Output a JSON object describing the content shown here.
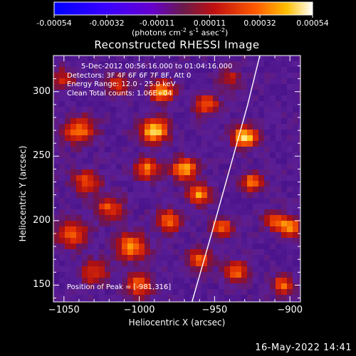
{
  "chart_data": {
    "type": "heatmap",
    "title": "Reconstructed RHESSI Image",
    "xlabel": "Heliocentric X (arcsec)",
    "ylabel": "Heliocentric Y (arcsec)",
    "xlim": [
      -1057,
      -893
    ],
    "ylim": [
      137,
      328
    ],
    "x_ticks": [
      -1050,
      -1000,
      -950,
      -900
    ],
    "y_ticks": [
      150,
      200,
      250,
      300
    ],
    "colorbar": {
      "ticks": [
        "-0.00054",
        "-0.00032",
        "-0.00011",
        "0.00011",
        "0.00032",
        "0.00054"
      ],
      "range": [
        -0.00054,
        0.00054
      ],
      "units_main": "(photons cm",
      "units_exp1": "-2",
      "units_mid": " s",
      "units_exp2": "-1",
      "units_tail": " asec",
      "units_exp3": "-2",
      "units_close": ")"
    },
    "info_lines": [
      "5-Dec-2012 00:56:16.000 to 01:04:16.000",
      "Detectors: 3F 4F 6F 6F 7F 8F, Att 0",
      "Energy Range: 12.0 - 25.0 keV",
      "Clean     Total counts: 1.06E+04"
    ],
    "peak_label": "Position of Peak = [-981,316]",
    "timestamp": "16-May-2022 14:41",
    "limb_curve": [
      [
        -965,
        137
      ],
      [
        -952,
        190
      ],
      [
        -940,
        240
      ],
      [
        -928,
        290
      ],
      [
        -920,
        328
      ]
    ],
    "blobs": [
      {
        "x": -1040,
        "y": 270,
        "v": 0.6,
        "r": 10
      },
      {
        "x": -1035,
        "y": 230,
        "v": 0.5,
        "r": 9
      },
      {
        "x": -1045,
        "y": 190,
        "v": 0.55,
        "r": 10
      },
      {
        "x": -1030,
        "y": 160,
        "v": 0.45,
        "r": 9
      },
      {
        "x": -1015,
        "y": 305,
        "v": 0.4,
        "r": 8
      },
      {
        "x": -1020,
        "y": 210,
        "v": 0.5,
        "r": 9
      },
      {
        "x": -1005,
        "y": 180,
        "v": 0.65,
        "r": 10
      },
      {
        "x": -1000,
        "y": 150,
        "v": 0.55,
        "r": 9
      },
      {
        "x": -990,
        "y": 270,
        "v": 0.85,
        "r": 9
      },
      {
        "x": -985,
        "y": 300,
        "v": 0.75,
        "r": 8
      },
      {
        "x": -995,
        "y": 240,
        "v": 0.6,
        "r": 8
      },
      {
        "x": -980,
        "y": 200,
        "v": 0.6,
        "r": 8
      },
      {
        "x": -970,
        "y": 240,
        "v": 0.75,
        "r": 8
      },
      {
        "x": -960,
        "y": 220,
        "v": 0.7,
        "r": 7
      },
      {
        "x": -955,
        "y": 290,
        "v": 0.5,
        "r": 8
      },
      {
        "x": -960,
        "y": 170,
        "v": 0.5,
        "r": 8
      },
      {
        "x": -945,
        "y": 195,
        "v": 0.55,
        "r": 7
      },
      {
        "x": -930,
        "y": 265,
        "v": 0.85,
        "r": 8
      },
      {
        "x": -925,
        "y": 230,
        "v": 0.6,
        "r": 7
      },
      {
        "x": -935,
        "y": 160,
        "v": 0.55,
        "r": 8
      },
      {
        "x": -910,
        "y": 200,
        "v": 0.5,
        "r": 7
      },
      {
        "x": -900,
        "y": 195,
        "v": 0.7,
        "r": 7
      },
      {
        "x": -905,
        "y": 150,
        "v": 0.55,
        "r": 7
      },
      {
        "x": -1050,
        "y": 310,
        "v": 0.35,
        "r": 8
      },
      {
        "x": -940,
        "y": 310,
        "v": 0.35,
        "r": 7
      }
    ]
  }
}
